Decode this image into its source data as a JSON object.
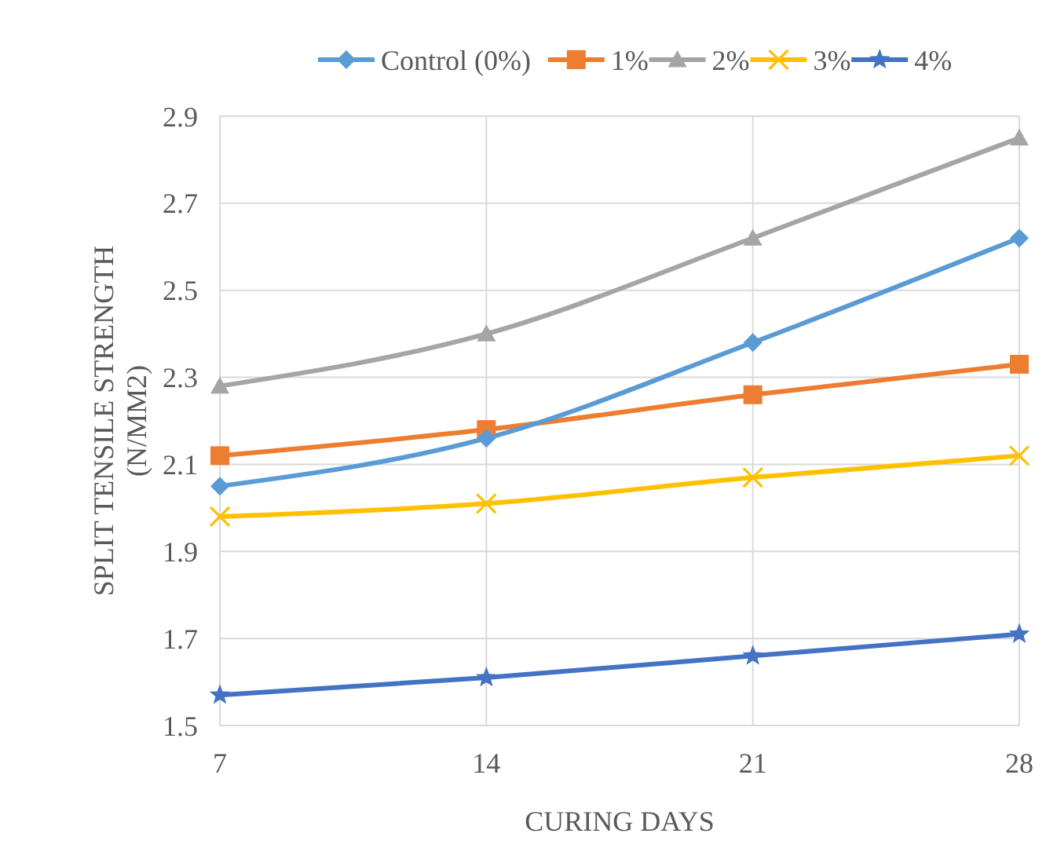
{
  "chart_data": {
    "type": "line",
    "xlabel": "CURING DAYS",
    "ylabel": "SPLIT TENSILE STRENGTH (N/MM2)",
    "x": [
      7,
      14,
      21,
      28
    ],
    "xlim": [
      7,
      28
    ],
    "xticks": [
      7,
      14,
      21,
      28
    ],
    "ylim": [
      1.5,
      2.9
    ],
    "yticks": [
      1.5,
      1.7,
      1.9,
      2.1,
      2.3,
      2.5,
      2.7,
      2.9
    ],
    "grid": true,
    "legend": "top",
    "series": [
      {
        "name": "Control (0%)",
        "color": "#5b9bd5",
        "marker": "diamond",
        "values": [
          2.05,
          2.16,
          2.38,
          2.62
        ]
      },
      {
        "name": "1%",
        "color": "#ed7d31",
        "marker": "square",
        "values": [
          2.12,
          2.18,
          2.26,
          2.33
        ]
      },
      {
        "name": "2%",
        "color": "#a5a5a5",
        "marker": "triangle",
        "values": [
          2.28,
          2.4,
          2.62,
          2.85
        ]
      },
      {
        "name": "3%",
        "color": "#ffc000",
        "marker": "cross",
        "values": [
          1.98,
          2.01,
          2.07,
          2.12
        ]
      },
      {
        "name": "4%",
        "color": "#4472c4",
        "marker": "star",
        "values": [
          1.57,
          1.61,
          1.66,
          1.71
        ]
      }
    ]
  }
}
